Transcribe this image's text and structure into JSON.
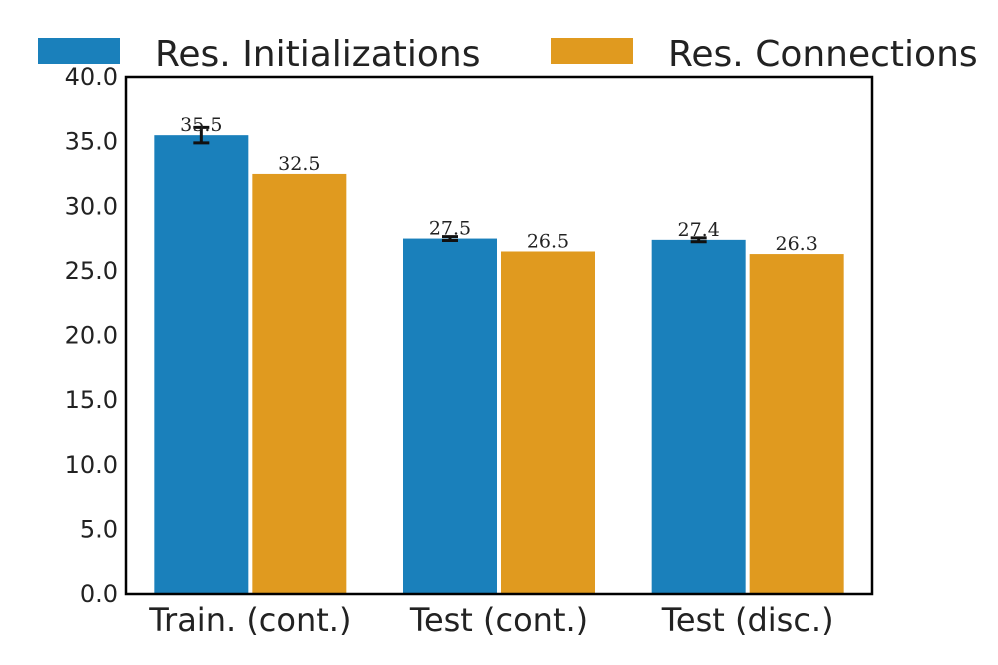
{
  "chart_data": {
    "type": "bar",
    "categories": [
      "Train. (cont.)",
      "Test (cont.)",
      "Test (disc.)"
    ],
    "series": [
      {
        "name": "Res. Initializations",
        "color": "#1a80bb",
        "values": [
          35.5,
          27.5,
          27.4
        ],
        "labels": [
          "35.5",
          "27.5",
          "27.4"
        ],
        "error": [
          0.6,
          0.15,
          0.15
        ]
      },
      {
        "name": "Res. Connections",
        "color": "#e09a1f",
        "values": [
          32.5,
          26.5,
          26.3
        ],
        "labels": [
          "32.5",
          "26.5",
          "26.3"
        ],
        "error": [
          0,
          0,
          0
        ]
      }
    ],
    "ylim": [
      0,
      40
    ],
    "yticks": [
      "0.0",
      "5.0",
      "10.0",
      "15.0",
      "20.0",
      "25.0",
      "30.0",
      "35.0",
      "40.0"
    ],
    "ytick_values": [
      0,
      5,
      10,
      15,
      20,
      25,
      30,
      35,
      40
    ],
    "xlabel": "",
    "ylabel": "",
    "grid": false,
    "legend_position": "top"
  }
}
